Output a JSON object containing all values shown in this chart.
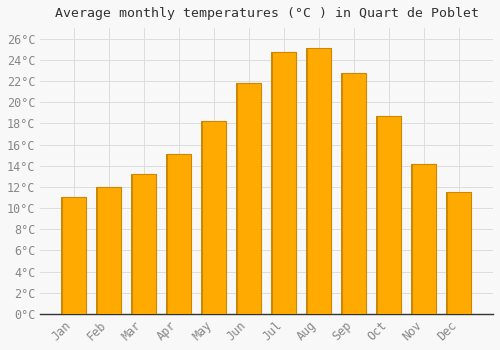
{
  "title": "Average monthly temperatures (°C ) in Quart de Poblet",
  "months": [
    "Jan",
    "Feb",
    "Mar",
    "Apr",
    "May",
    "Jun",
    "Jul",
    "Aug",
    "Sep",
    "Oct",
    "Nov",
    "Dec"
  ],
  "values": [
    11.0,
    12.0,
    13.2,
    15.1,
    18.2,
    21.8,
    24.7,
    25.1,
    22.8,
    18.7,
    14.2,
    11.5
  ],
  "bar_color": "#FFAA00",
  "bar_edge_color": "#CC8800",
  "background_color": "#F8F8F8",
  "plot_bg_color": "#F8F8F8",
  "grid_color": "#DDDDDD",
  "text_color": "#888888",
  "title_color": "#333333",
  "ylim": [
    0,
    27
  ],
  "yticks": [
    0,
    2,
    4,
    6,
    8,
    10,
    12,
    14,
    16,
    18,
    20,
    22,
    24,
    26
  ],
  "title_fontsize": 9.5,
  "tick_fontsize": 8.5,
  "font_family": "monospace",
  "bar_width": 0.75
}
